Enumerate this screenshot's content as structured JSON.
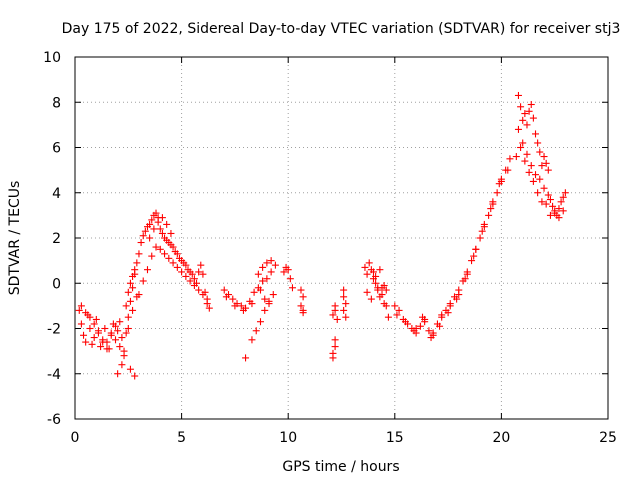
{
  "chart_data": {
    "type": "scatter",
    "title": "Day 175 of 2022, Sidereal Day-to-day VTEC variation (SDTVAR) for receiver stj3",
    "xlabel": "GPS time / hours",
    "ylabel": "SDTVAR / TECUs",
    "xlim": [
      0,
      25
    ],
    "ylim": [
      -6,
      10
    ],
    "xticks": [
      0,
      5,
      10,
      15,
      20,
      25
    ],
    "yticks": [
      -6,
      -4,
      -2,
      0,
      2,
      4,
      6,
      8,
      10
    ],
    "grid": true,
    "marker": "+",
    "color": "#ff0000",
    "series": [
      {
        "name": "stj3",
        "x": [
          0.2,
          0.3,
          0.4,
          0.5,
          0.6,
          0.7,
          0.8,
          0.9,
          1.0,
          1.1,
          1.2,
          1.3,
          1.4,
          1.5,
          1.6,
          1.7,
          1.8,
          1.9,
          2.0,
          2.1,
          2.2,
          2.3,
          2.4,
          2.5,
          2.6,
          2.7,
          2.8,
          2.9,
          3.0,
          3.1,
          3.2,
          3.3,
          3.4,
          3.5,
          3.6,
          3.7,
          3.8,
          3.9,
          4.0,
          4.1,
          4.2,
          4.3,
          4.4,
          4.5,
          4.6,
          4.7,
          4.8,
          4.9,
          5.0,
          5.1,
          5.2,
          5.3,
          5.4,
          5.5,
          5.6,
          5.7,
          5.8,
          5.9,
          6.0,
          6.1,
          6.2,
          6.3,
          0.3,
          0.5,
          0.7,
          0.9,
          1.1,
          1.3,
          1.5,
          1.7,
          1.9,
          2.1,
          2.3,
          2.5,
          2.7,
          2.9,
          2.0,
          2.2,
          2.6,
          2.8,
          3.0,
          3.2,
          3.4,
          3.6,
          3.8,
          4.0,
          4.2,
          4.4,
          4.6,
          4.8,
          5.0,
          5.2,
          5.4,
          5.6,
          5.8,
          6.0,
          6.2,
          2.4,
          2.5,
          2.6,
          2.7,
          2.8,
          3.5,
          3.7,
          3.9,
          4.1,
          4.3,
          4.5,
          7.0,
          7.2,
          7.4,
          7.6,
          7.8,
          8.0,
          8.2,
          8.4,
          8.6,
          8.8,
          7.1,
          7.5,
          7.9,
          8.3,
          8.7,
          8.0,
          8.3,
          8.5,
          8.7,
          8.9,
          9.1,
          9.3,
          8.6,
          8.8,
          9.0,
          9.2,
          9.4,
          9.0,
          9.2,
          8.9,
          9.1,
          9.8,
          9.9,
          10.0,
          10.1,
          10.2,
          10.6,
          10.7,
          10.6,
          10.7,
          10.7,
          12.1,
          12.2,
          12.2,
          12.1,
          12.3,
          12.2,
          12.1,
          12.2,
          12.6,
          12.6,
          12.7,
          12.6,
          12.7,
          13.6,
          13.7,
          13.8,
          13.9,
          14.0,
          14.1,
          14.2,
          14.3,
          14.4,
          14.5,
          14.6,
          14.7,
          13.7,
          13.9,
          14.1,
          14.3,
          14.5,
          14.0,
          14.2,
          14.4,
          14.6,
          15.0,
          15.2,
          15.4,
          15.6,
          15.8,
          16.0,
          16.2,
          16.4,
          16.6,
          16.8,
          17.0,
          17.2,
          17.4,
          17.6,
          17.8,
          18.0,
          18.2,
          18.4,
          18.6,
          18.8,
          19.0,
          19.2,
          19.4,
          19.6,
          19.8,
          20.0,
          20.2,
          20.4,
          15.1,
          15.5,
          15.9,
          16.3,
          16.7,
          17.1,
          17.5,
          17.9,
          18.3,
          18.7,
          19.1,
          19.5,
          19.9,
          20.3,
          16.0,
          16.4,
          16.8,
          17.2,
          17.6,
          18.0,
          18.4,
          18.8,
          19.2,
          19.6,
          20.0,
          20.8,
          20.9,
          21.0,
          21.1,
          21.2,
          21.3,
          21.4,
          21.5,
          21.6,
          21.7,
          21.8,
          21.9,
          22.0,
          22.1,
          22.2,
          20.8,
          21.0,
          21.2,
          21.4,
          21.6,
          21.8,
          22.0,
          22.2,
          20.7,
          20.9,
          21.1,
          21.3,
          21.5,
          21.7,
          21.9,
          22.1,
          22.3,
          22.4,
          22.5,
          22.6,
          22.7,
          22.8,
          22.9,
          23.0,
          22.3,
          22.5,
          22.7,
          22.9
        ],
        "y": [
          -1.2,
          -1.8,
          -2.3,
          -2.6,
          -1.4,
          -2.0,
          -2.7,
          -2.4,
          -1.6,
          -2.1,
          -2.8,
          -2.5,
          -2.0,
          -2.6,
          -2.9,
          -2.2,
          -1.8,
          -2.5,
          -2.1,
          -1.7,
          -2.4,
          -3.0,
          -2.2,
          -1.5,
          -0.8,
          -0.2,
          0.4,
          0.9,
          1.3,
          1.8,
          2.1,
          2.3,
          2.5,
          2.6,
          2.8,
          3.0,
          3.1,
          2.9,
          2.4,
          2.2,
          2.0,
          1.9,
          1.8,
          1.7,
          1.6,
          1.4,
          1.3,
          1.1,
          1.0,
          0.9,
          0.8,
          0.6,
          0.5,
          0.4,
          0.2,
          0.0,
          0.5,
          0.8,
          0.4,
          -0.4,
          -0.9,
          -1.1,
          -1.0,
          -1.3,
          -1.5,
          -1.8,
          -2.2,
          -2.6,
          -2.9,
          -2.3,
          -1.9,
          -2.8,
          -3.2,
          -2.0,
          -1.2,
          -0.6,
          -4.0,
          -3.6,
          -3.8,
          -4.1,
          -0.5,
          0.1,
          0.6,
          1.2,
          1.6,
          1.5,
          1.3,
          1.1,
          0.9,
          0.7,
          0.5,
          0.3,
          0.1,
          -0.1,
          -0.3,
          -0.5,
          -0.7,
          -1.0,
          -0.4,
          0.0,
          0.3,
          0.6,
          2.0,
          2.4,
          2.7,
          2.9,
          2.6,
          2.2,
          -0.3,
          -0.5,
          -0.7,
          -0.9,
          -1.0,
          -1.1,
          -0.8,
          -0.4,
          -0.2,
          0.1,
          -0.6,
          -1.0,
          -1.2,
          -0.9,
          -0.3,
          -3.3,
          -2.5,
          -2.1,
          -1.7,
          -1.2,
          -0.8,
          -0.5,
          0.4,
          0.7,
          0.9,
          1.0,
          0.8,
          0.2,
          0.5,
          -0.7,
          -0.9,
          0.5,
          0.7,
          0.6,
          0.2,
          -0.2,
          -0.3,
          -0.6,
          -1.0,
          -1.2,
          -1.3,
          -3.1,
          -2.8,
          -2.5,
          -3.3,
          -1.6,
          -1.2,
          -1.4,
          -1.0,
          -0.6,
          -1.2,
          -1.5,
          -0.3,
          -0.9,
          0.7,
          0.4,
          0.9,
          0.6,
          0.2,
          0.0,
          -0.3,
          -0.6,
          -0.2,
          -0.9,
          -1.0,
          -1.5,
          -0.4,
          -0.7,
          0.3,
          0.6,
          -0.1,
          0.5,
          -0.2,
          -0.5,
          -0.3,
          -1.0,
          -1.2,
          -1.6,
          -1.8,
          -2.0,
          -2.2,
          -1.9,
          -1.7,
          -2.1,
          -2.3,
          -1.8,
          -1.5,
          -1.2,
          -0.9,
          -0.6,
          -0.3,
          0.1,
          0.5,
          1.0,
          1.5,
          2.0,
          2.5,
          3.0,
          3.5,
          4.0,
          4.5,
          5.0,
          5.5,
          -1.4,
          -1.7,
          -2.1,
          -1.5,
          -2.4,
          -1.9,
          -1.3,
          -0.7,
          0.2,
          1.2,
          2.3,
          3.3,
          4.4,
          5.0,
          -2.0,
          -1.6,
          -2.2,
          -1.4,
          -1.0,
          -0.5,
          0.4,
          1.5,
          2.6,
          3.6,
          4.6,
          8.3,
          7.8,
          7.2,
          7.5,
          7.0,
          7.6,
          7.9,
          7.3,
          6.6,
          6.2,
          5.8,
          5.2,
          5.6,
          5.3,
          5.0,
          6.8,
          6.2,
          5.7,
          5.2,
          4.8,
          4.6,
          4.2,
          3.9,
          5.6,
          6.0,
          5.4,
          4.9,
          4.5,
          4.0,
          3.6,
          3.5,
          3.7,
          3.4,
          3.2,
          3.0,
          3.3,
          3.6,
          3.8,
          4.0,
          3.0,
          3.1,
          2.9,
          3.2
        ]
      }
    ]
  }
}
